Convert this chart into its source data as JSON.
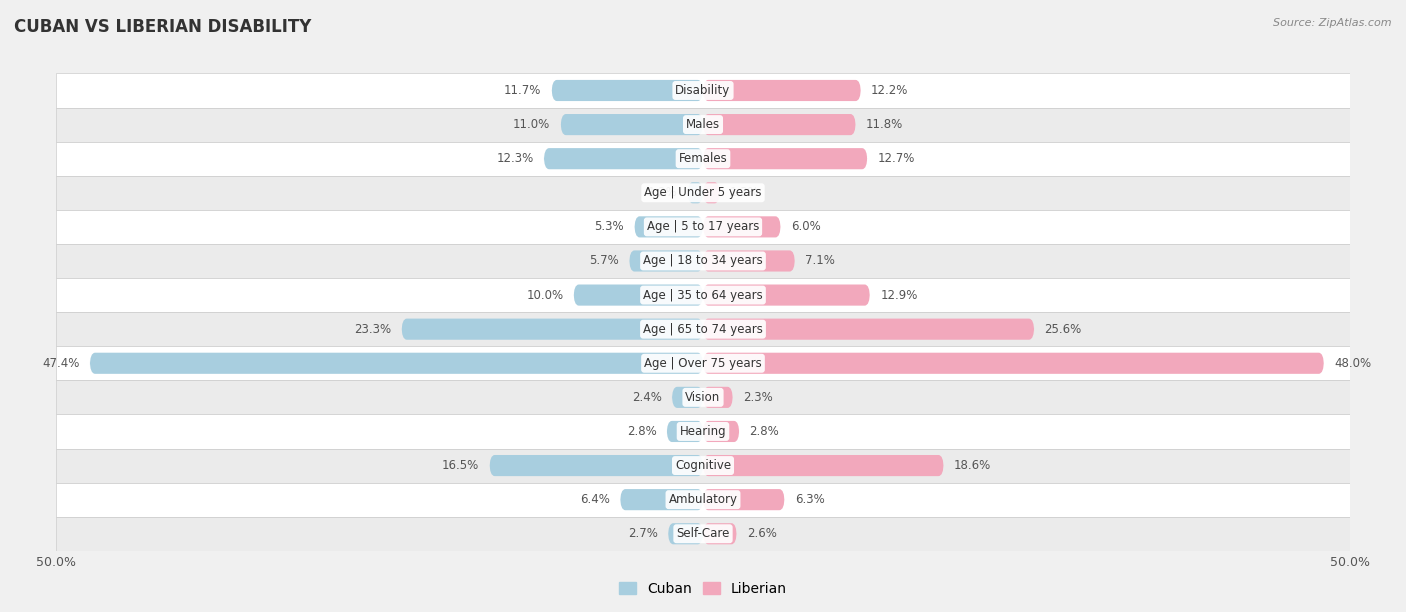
{
  "title": "CUBAN VS LIBERIAN DISABILITY",
  "source": "Source: ZipAtlas.com",
  "categories": [
    "Disability",
    "Males",
    "Females",
    "Age | Under 5 years",
    "Age | 5 to 17 years",
    "Age | 18 to 34 years",
    "Age | 35 to 64 years",
    "Age | 65 to 74 years",
    "Age | Over 75 years",
    "Vision",
    "Hearing",
    "Cognitive",
    "Ambulatory",
    "Self-Care"
  ],
  "cuban": [
    11.7,
    11.0,
    12.3,
    1.2,
    5.3,
    5.7,
    10.0,
    23.3,
    47.4,
    2.4,
    2.8,
    16.5,
    6.4,
    2.7
  ],
  "liberian": [
    12.2,
    11.8,
    12.7,
    1.3,
    6.0,
    7.1,
    12.9,
    25.6,
    48.0,
    2.3,
    2.8,
    18.6,
    6.3,
    2.6
  ],
  "cuban_color": "#A8CEDF",
  "liberian_color": "#F2A8BC",
  "max_val": 50.0,
  "bg_color": "#f0f0f0",
  "row_bg_even": "#ffffff",
  "row_bg_odd": "#ebebeb",
  "bar_height": 0.62,
  "legend_cuban": "Cuban",
  "legend_liberian": "Liberian",
  "label_color": "#555555",
  "value_fontsize": 8.5,
  "cat_fontsize": 8.5,
  "title_fontsize": 12,
  "source_fontsize": 8
}
